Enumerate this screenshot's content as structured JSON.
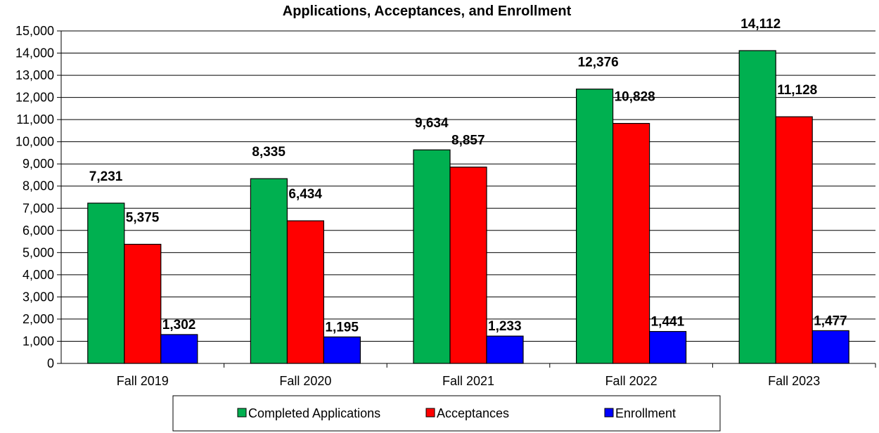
{
  "chart_data": {
    "type": "bar",
    "title": "Applications, Acceptances, and Enrollment",
    "xlabel": "",
    "ylabel": "",
    "categories": [
      "Fall 2019",
      "Fall 2020",
      "Fall 2021",
      "Fall 2022",
      "Fall 2023"
    ],
    "series": [
      {
        "name": "Completed Applications",
        "color": "#00B050",
        "values": [
          7231,
          8335,
          9634,
          12376,
          14112
        ],
        "labels": [
          "7,231",
          "8,335",
          "9,634",
          "12,376",
          "14,112"
        ]
      },
      {
        "name": "Acceptances",
        "color": "#FF0000",
        "values": [
          5375,
          6434,
          8857,
          10828,
          11128
        ],
        "labels": [
          "5,375",
          "6,434",
          "8,857",
          "10,828",
          "11,128"
        ]
      },
      {
        "name": "Enrollment",
        "color": "#0000FF",
        "values": [
          1302,
          1195,
          1233,
          1441,
          1477
        ],
        "labels": [
          "1,302",
          "1,195",
          "1,233",
          "1,441",
          "1,477"
        ]
      }
    ],
    "ylim": [
      0,
      15000
    ],
    "ytick_labels": [
      "0",
      "1,000",
      "2,000",
      "3,000",
      "4,000",
      "5,000",
      "6,000",
      "7,000",
      "8,000",
      "9,000",
      "10,000",
      "11,000",
      "12,000",
      "13,000",
      "14,000",
      "15,000"
    ],
    "grid": true,
    "legend_position": "bottom"
  }
}
